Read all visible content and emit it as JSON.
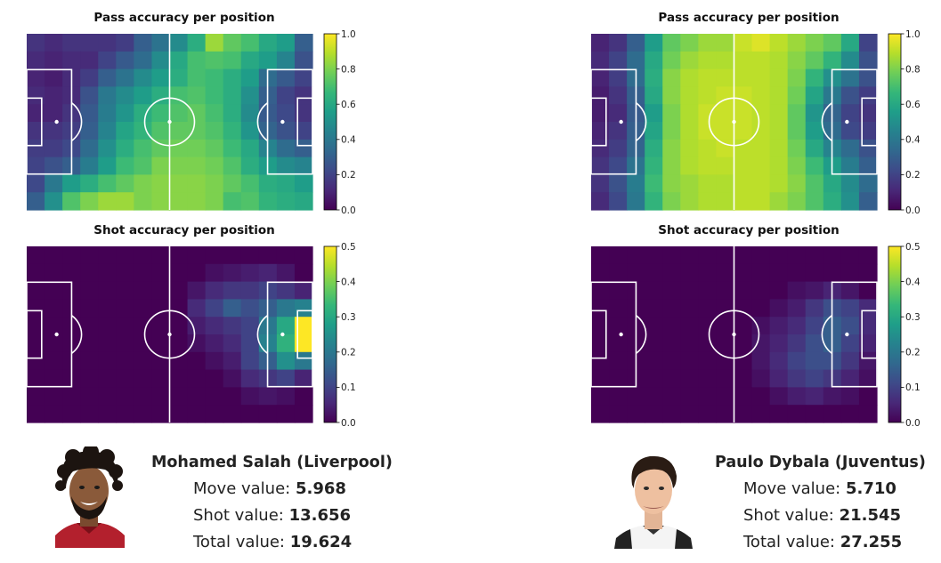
{
  "chart_data": [
    {
      "type": "heatmap",
      "title": "Pass accuracy per position",
      "colormap": "viridis",
      "vmin": 0.0,
      "vmax": 1.0,
      "colorbar_ticks": [
        "0.0",
        "0.2",
        "0.4",
        "0.6",
        "0.8",
        "1.0"
      ],
      "rows": 10,
      "cols": 16,
      "values": [
        [
          0.15,
          0.12,
          0.15,
          0.15,
          0.15,
          0.18,
          0.3,
          0.38,
          0.48,
          0.62,
          0.85,
          0.75,
          0.7,
          0.6,
          0.55,
          0.3
        ],
        [
          0.12,
          0.1,
          0.12,
          0.12,
          0.2,
          0.28,
          0.35,
          0.48,
          0.6,
          0.7,
          0.72,
          0.7,
          0.6,
          0.55,
          0.45,
          0.25
        ],
        [
          0.1,
          0.08,
          0.12,
          0.18,
          0.3,
          0.38,
          0.48,
          0.55,
          0.62,
          0.7,
          0.68,
          0.62,
          0.55,
          0.35,
          0.28,
          0.2
        ],
        [
          0.12,
          0.1,
          0.12,
          0.25,
          0.4,
          0.48,
          0.55,
          0.62,
          0.7,
          0.72,
          0.68,
          0.62,
          0.5,
          0.3,
          0.2,
          0.15
        ],
        [
          0.1,
          0.1,
          0.15,
          0.28,
          0.42,
          0.52,
          0.62,
          0.68,
          0.72,
          0.75,
          0.7,
          0.62,
          0.48,
          0.28,
          0.22,
          0.15
        ],
        [
          0.15,
          0.15,
          0.18,
          0.3,
          0.45,
          0.58,
          0.65,
          0.72,
          0.75,
          0.75,
          0.72,
          0.65,
          0.52,
          0.32,
          0.25,
          0.2
        ],
        [
          0.18,
          0.18,
          0.22,
          0.35,
          0.5,
          0.62,
          0.7,
          0.75,
          0.78,
          0.78,
          0.75,
          0.68,
          0.6,
          0.45,
          0.35,
          0.3
        ],
        [
          0.2,
          0.25,
          0.3,
          0.42,
          0.55,
          0.68,
          0.72,
          0.8,
          0.8,
          0.8,
          0.78,
          0.72,
          0.62,
          0.55,
          0.48,
          0.45
        ],
        [
          0.22,
          0.4,
          0.55,
          0.62,
          0.7,
          0.75,
          0.8,
          0.82,
          0.82,
          0.82,
          0.8,
          0.75,
          0.7,
          0.62,
          0.6,
          0.55
        ],
        [
          0.3,
          0.5,
          0.72,
          0.8,
          0.85,
          0.85,
          0.8,
          0.82,
          0.82,
          0.82,
          0.8,
          0.7,
          0.72,
          0.65,
          0.62,
          0.6
        ]
      ]
    },
    {
      "type": "heatmap",
      "title": "Pass accuracy per position",
      "colormap": "viridis",
      "vmin": 0.0,
      "vmax": 1.0,
      "colorbar_ticks": [
        "0.0",
        "0.2",
        "0.4",
        "0.6",
        "0.8",
        "1.0"
      ],
      "rows": 10,
      "cols": 16,
      "values": [
        [
          0.1,
          0.15,
          0.3,
          0.55,
          0.75,
          0.8,
          0.85,
          0.85,
          0.92,
          0.95,
          0.9,
          0.85,
          0.8,
          0.75,
          0.6,
          0.2
        ],
        [
          0.12,
          0.2,
          0.35,
          0.6,
          0.78,
          0.85,
          0.88,
          0.88,
          0.9,
          0.9,
          0.88,
          0.82,
          0.75,
          0.65,
          0.48,
          0.25
        ],
        [
          0.1,
          0.18,
          0.35,
          0.62,
          0.82,
          0.88,
          0.9,
          0.9,
          0.9,
          0.9,
          0.88,
          0.8,
          0.65,
          0.5,
          0.38,
          0.25
        ],
        [
          0.08,
          0.15,
          0.3,
          0.6,
          0.82,
          0.88,
          0.9,
          0.92,
          0.92,
          0.9,
          0.88,
          0.78,
          0.58,
          0.4,
          0.25,
          0.18
        ],
        [
          0.08,
          0.12,
          0.28,
          0.55,
          0.8,
          0.88,
          0.92,
          0.92,
          0.92,
          0.9,
          0.88,
          0.75,
          0.52,
          0.32,
          0.2,
          0.15
        ],
        [
          0.1,
          0.15,
          0.3,
          0.58,
          0.8,
          0.88,
          0.92,
          0.92,
          0.92,
          0.9,
          0.88,
          0.75,
          0.55,
          0.35,
          0.22,
          0.18
        ],
        [
          0.12,
          0.18,
          0.32,
          0.62,
          0.82,
          0.88,
          0.9,
          0.92,
          0.9,
          0.9,
          0.88,
          0.78,
          0.6,
          0.45,
          0.35,
          0.25
        ],
        [
          0.15,
          0.22,
          0.38,
          0.65,
          0.82,
          0.88,
          0.9,
          0.9,
          0.9,
          0.9,
          0.88,
          0.8,
          0.68,
          0.55,
          0.42,
          0.3
        ],
        [
          0.15,
          0.25,
          0.42,
          0.68,
          0.82,
          0.85,
          0.88,
          0.88,
          0.9,
          0.9,
          0.88,
          0.82,
          0.72,
          0.6,
          0.48,
          0.35
        ],
        [
          0.12,
          0.22,
          0.4,
          0.65,
          0.8,
          0.85,
          0.88,
          0.88,
          0.9,
          0.9,
          0.85,
          0.8,
          0.72,
          0.62,
          0.5,
          0.3
        ]
      ]
    },
    {
      "type": "heatmap",
      "title": "Shot accuracy per position",
      "colormap": "viridis",
      "vmin": 0.0,
      "vmax": 0.5,
      "colorbar_ticks": [
        "0.0",
        "0.1",
        "0.2",
        "0.3",
        "0.4",
        "0.5"
      ],
      "rows": 10,
      "cols": 16,
      "values": [
        [
          0,
          0,
          0,
          0,
          0,
          0,
          0,
          0,
          0,
          0,
          0,
          0,
          0,
          0,
          0,
          0
        ],
        [
          0,
          0,
          0,
          0,
          0,
          0,
          0,
          0,
          0,
          0,
          0.02,
          0.03,
          0.04,
          0.05,
          0.03,
          0
        ],
        [
          0,
          0,
          0,
          0,
          0,
          0,
          0,
          0,
          0,
          0.03,
          0.06,
          0.08,
          0.08,
          0.1,
          0.08,
          0.05
        ],
        [
          0,
          0,
          0,
          0,
          0,
          0,
          0,
          0,
          0,
          0.06,
          0.1,
          0.15,
          0.12,
          0.15,
          0.2,
          0.22
        ],
        [
          0,
          0,
          0,
          0,
          0,
          0,
          0,
          0,
          0,
          0.04,
          0.06,
          0.08,
          0.1,
          0.2,
          0.3,
          0.5
        ],
        [
          0,
          0,
          0,
          0,
          0,
          0,
          0,
          0,
          0,
          0.02,
          0.04,
          0.06,
          0.1,
          0.22,
          0.32,
          0.5
        ],
        [
          0,
          0,
          0,
          0,
          0,
          0,
          0,
          0,
          0,
          0,
          0.02,
          0.04,
          0.1,
          0.15,
          0.25,
          0.2
        ],
        [
          0,
          0,
          0,
          0,
          0,
          0,
          0,
          0,
          0,
          0,
          0,
          0.02,
          0.06,
          0.08,
          0.1,
          0.05
        ],
        [
          0,
          0,
          0,
          0,
          0,
          0,
          0,
          0,
          0,
          0,
          0,
          0,
          0.02,
          0.03,
          0.02,
          0
        ],
        [
          0,
          0,
          0,
          0,
          0,
          0,
          0,
          0,
          0,
          0,
          0,
          0,
          0,
          0,
          0,
          0
        ]
      ]
    },
    {
      "type": "heatmap",
      "title": "Shot accuracy per position",
      "colormap": "viridis",
      "vmin": 0.0,
      "vmax": 0.5,
      "colorbar_ticks": [
        "0.0",
        "0.1",
        "0.2",
        "0.3",
        "0.4",
        "0.5"
      ],
      "rows": 10,
      "cols": 16,
      "values": [
        [
          0,
          0,
          0,
          0,
          0,
          0,
          0,
          0,
          0,
          0,
          0,
          0,
          0,
          0,
          0,
          0
        ],
        [
          0,
          0,
          0,
          0,
          0,
          0,
          0,
          0,
          0,
          0,
          0,
          0,
          0,
          0,
          0,
          0
        ],
        [
          0,
          0,
          0,
          0,
          0,
          0,
          0,
          0,
          0,
          0,
          0,
          0.02,
          0.03,
          0.05,
          0.03,
          0
        ],
        [
          0,
          0,
          0,
          0,
          0,
          0,
          0,
          0,
          0,
          0,
          0.02,
          0.04,
          0.08,
          0.12,
          0.1,
          0.06
        ],
        [
          0,
          0,
          0,
          0,
          0,
          0,
          0,
          0,
          0,
          0.02,
          0.04,
          0.06,
          0.1,
          0.15,
          0.12,
          0.06
        ],
        [
          0,
          0,
          0,
          0,
          0,
          0,
          0,
          0,
          0,
          0.03,
          0.05,
          0.08,
          0.12,
          0.15,
          0.1,
          0.05
        ],
        [
          0,
          0,
          0,
          0,
          0,
          0,
          0,
          0,
          0,
          0.03,
          0.06,
          0.1,
          0.12,
          0.12,
          0.08,
          0.03
        ],
        [
          0,
          0,
          0,
          0,
          0,
          0,
          0,
          0,
          0,
          0.02,
          0.05,
          0.08,
          0.1,
          0.08,
          0.05,
          0.02
        ],
        [
          0,
          0,
          0,
          0,
          0,
          0,
          0,
          0,
          0,
          0,
          0.02,
          0.04,
          0.05,
          0.03,
          0.02,
          0
        ],
        [
          0,
          0,
          0,
          0,
          0,
          0,
          0,
          0,
          0,
          0,
          0,
          0,
          0,
          0,
          0,
          0
        ]
      ]
    }
  ],
  "players": [
    {
      "name": "Mohamed Salah (Liverpool)",
      "move_label": "Move value: ",
      "move_value": "5.968",
      "shot_label": "Shot value: ",
      "shot_value": "13.656",
      "total_label": "Total value: ",
      "total_value": "19.624"
    },
    {
      "name": "Paulo Dybala (Juventus)",
      "move_label": "Move value: ",
      "move_value": "5.710",
      "shot_label": "Shot value: ",
      "shot_value": "21.545",
      "total_label": "Total value: ",
      "total_value": "27.255"
    }
  ]
}
